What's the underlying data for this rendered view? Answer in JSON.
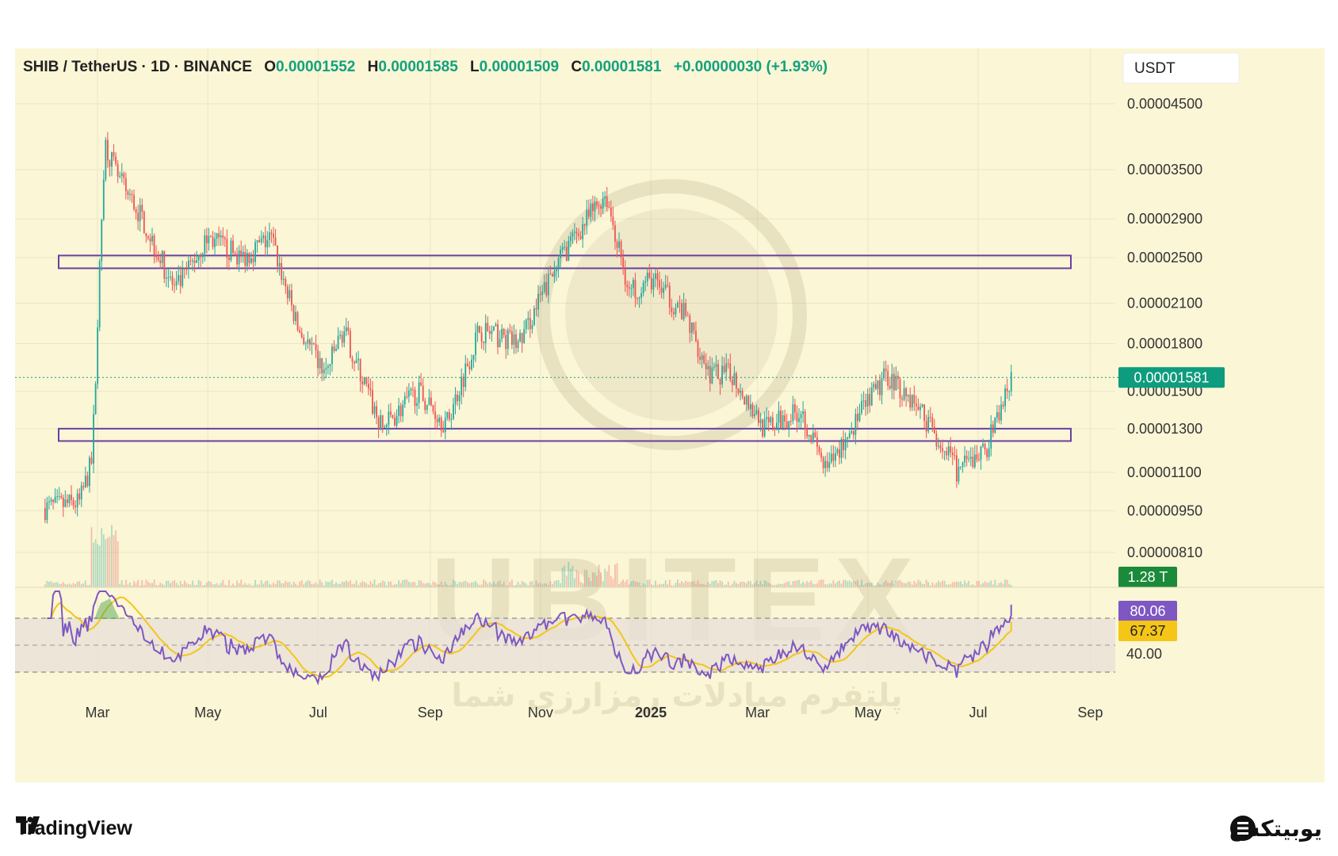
{
  "header": {
    "symbol": "SHIB / TetherUS · 1D · BINANCE",
    "o_label": "O",
    "o_value": "0.00001552",
    "h_label": "H",
    "h_value": "0.00001585",
    "l_label": "L",
    "l_value": "0.00001509",
    "c_label": "C",
    "c_value": "0.00001581",
    "change": "+0.00000030 (+1.93%)"
  },
  "currency_label": "USDT",
  "price_badge": "0.00001581",
  "volume_badge": "1.28 T",
  "rsi_badges": {
    "rsi": "80.06",
    "ma": "67.37",
    "level": "40.00"
  },
  "watermark": {
    "logo": "UBITEX",
    "tagline": "پلتفرم مبادلات رمزارزی شما"
  },
  "footer": {
    "tradingview": "TradingView",
    "brand": "یوبیتکس"
  },
  "colors": {
    "background": "#faf6d6",
    "up": "#26a69a",
    "down": "#ef5350",
    "zone_border": "#6b3fa0",
    "rsi_line": "#7e57c2",
    "rsi_ma": "#f5c518",
    "price_badge": "#0e9c7e",
    "volume_badge": "#1b8a3a"
  },
  "chart_data": {
    "type": "candlestick",
    "price_axis": {
      "scale": "log",
      "tick_labels": [
        "0.00004500",
        "0.00003500",
        "0.00002900",
        "0.00002500",
        "0.00002100",
        "0.00001800",
        "0.00001500",
        "0.00001300",
        "0.00001100",
        "0.00000950",
        "0.00000810"
      ]
    },
    "x_axis": {
      "tick_labels": [
        "Mar",
        "May",
        "Jul",
        "Sep",
        "Nov",
        "2025",
        "Mar",
        "May",
        "Jul",
        "Sep"
      ]
    },
    "close_path": [
      {
        "date": "2024-02-01",
        "close": 9.6e-06
      },
      {
        "date": "2024-02-20",
        "close": 9.8e-06
      },
      {
        "date": "2024-02-27",
        "close": 1.15e-05
      },
      {
        "date": "2024-03-05",
        "close": 3.9e-05
      },
      {
        "date": "2024-03-12",
        "close": 3.4e-05
      },
      {
        "date": "2024-03-26",
        "close": 2.9e-05
      },
      {
        "date": "2024-04-13",
        "close": 2.2e-05
      },
      {
        "date": "2024-05-01",
        "close": 2.7e-05
      },
      {
        "date": "2024-05-20",
        "close": 2.5e-05
      },
      {
        "date": "2024-06-05",
        "close": 2.7e-05
      },
      {
        "date": "2024-06-20",
        "close": 1.9e-05
      },
      {
        "date": "2024-07-05",
        "close": 1.6e-05
      },
      {
        "date": "2024-07-15",
        "close": 1.9e-05
      },
      {
        "date": "2024-08-05",
        "close": 1.3e-05
      },
      {
        "date": "2024-08-25",
        "close": 1.5e-05
      },
      {
        "date": "2024-09-10",
        "close": 1.32e-05
      },
      {
        "date": "2024-09-28",
        "close": 1.9e-05
      },
      {
        "date": "2024-10-20",
        "close": 1.8e-05
      },
      {
        "date": "2024-11-12",
        "close": 2.5e-05
      },
      {
        "date": "2024-12-07",
        "close": 3.2e-05
      },
      {
        "date": "2024-12-20",
        "close": 2.2e-05
      },
      {
        "date": "2025-01-02",
        "close": 2.3e-05
      },
      {
        "date": "2025-01-20",
        "close": 2e-05
      },
      {
        "date": "2025-02-03",
        "close": 1.6e-05
      },
      {
        "date": "2025-02-15",
        "close": 1.6e-05
      },
      {
        "date": "2025-03-05",
        "close": 1.3e-05
      },
      {
        "date": "2025-03-25",
        "close": 1.4e-05
      },
      {
        "date": "2025-04-08",
        "close": 1.1e-05
      },
      {
        "date": "2025-04-25",
        "close": 1.35e-05
      },
      {
        "date": "2025-05-12",
        "close": 1.6e-05
      },
      {
        "date": "2025-05-30",
        "close": 1.4e-05
      },
      {
        "date": "2025-06-20",
        "close": 1.1e-05
      },
      {
        "date": "2025-07-05",
        "close": 1.2e-05
      },
      {
        "date": "2025-07-20",
        "close": 1.581e-05
      }
    ],
    "zones": [
      {
        "top": 2.52e-05,
        "bottom": 2.4e-05
      },
      {
        "top": 1.3e-05,
        "bottom": 1.24e-05
      }
    ],
    "current_price": 1.581e-05,
    "volume_last": "1.28 T",
    "rsi": {
      "last": 80.06,
      "ma_last": 67.37,
      "bands": [
        70,
        50,
        30
      ]
    }
  }
}
